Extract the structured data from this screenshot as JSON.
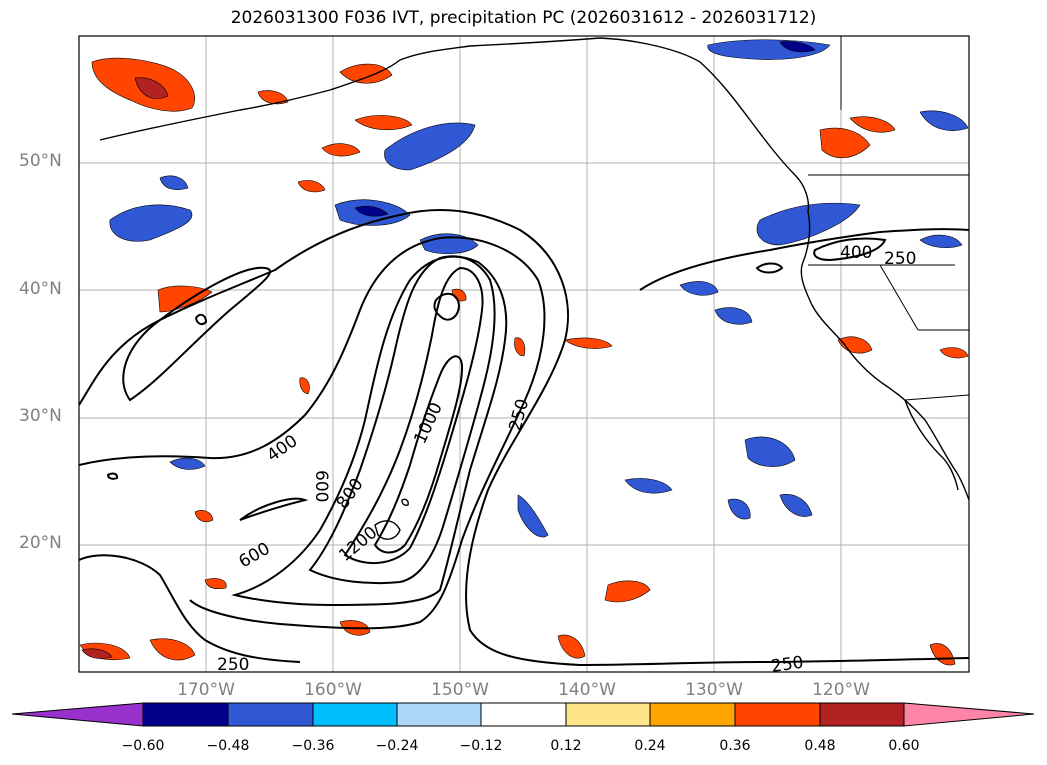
{
  "title": "2026031300 F036 IVT, precipitation PC (2026031612 - 2026031712)",
  "map": {
    "lat_range": [
      10,
      60
    ],
    "lon_range": [
      -180,
      -110
    ],
    "lat_ticks": [
      "20°N",
      "30°N",
      "40°N",
      "50°N"
    ],
    "lon_ticks": [
      "170°W",
      "160°W",
      "150°W",
      "140°W",
      "130°W",
      "120°W"
    ],
    "gridlines": true,
    "ivt_contour_labels": [
      "250",
      "400",
      "600",
      "800",
      "1000",
      "1200",
      "600",
      "400",
      "250",
      "250",
      "250"
    ]
  },
  "colorbar": {
    "extend": "both",
    "tick_labels": [
      "−0.60",
      "−0.48",
      "−0.36",
      "−0.24",
      "−0.12",
      "0.12",
      "0.24",
      "0.36",
      "0.48",
      "0.60"
    ],
    "colors": [
      "#9932cc",
      "#00008b",
      "#3158d4",
      "#00bfff",
      "#add8f7",
      "#ffffff",
      "#ffe58a",
      "#ffa500",
      "#ff4500",
      "#b22222",
      "#ff85a8"
    ]
  },
  "colors": {
    "coastline": "#000000",
    "ivt_contour": "#000000",
    "grid": "#b0b0b0",
    "tick_label": "#808080"
  }
}
